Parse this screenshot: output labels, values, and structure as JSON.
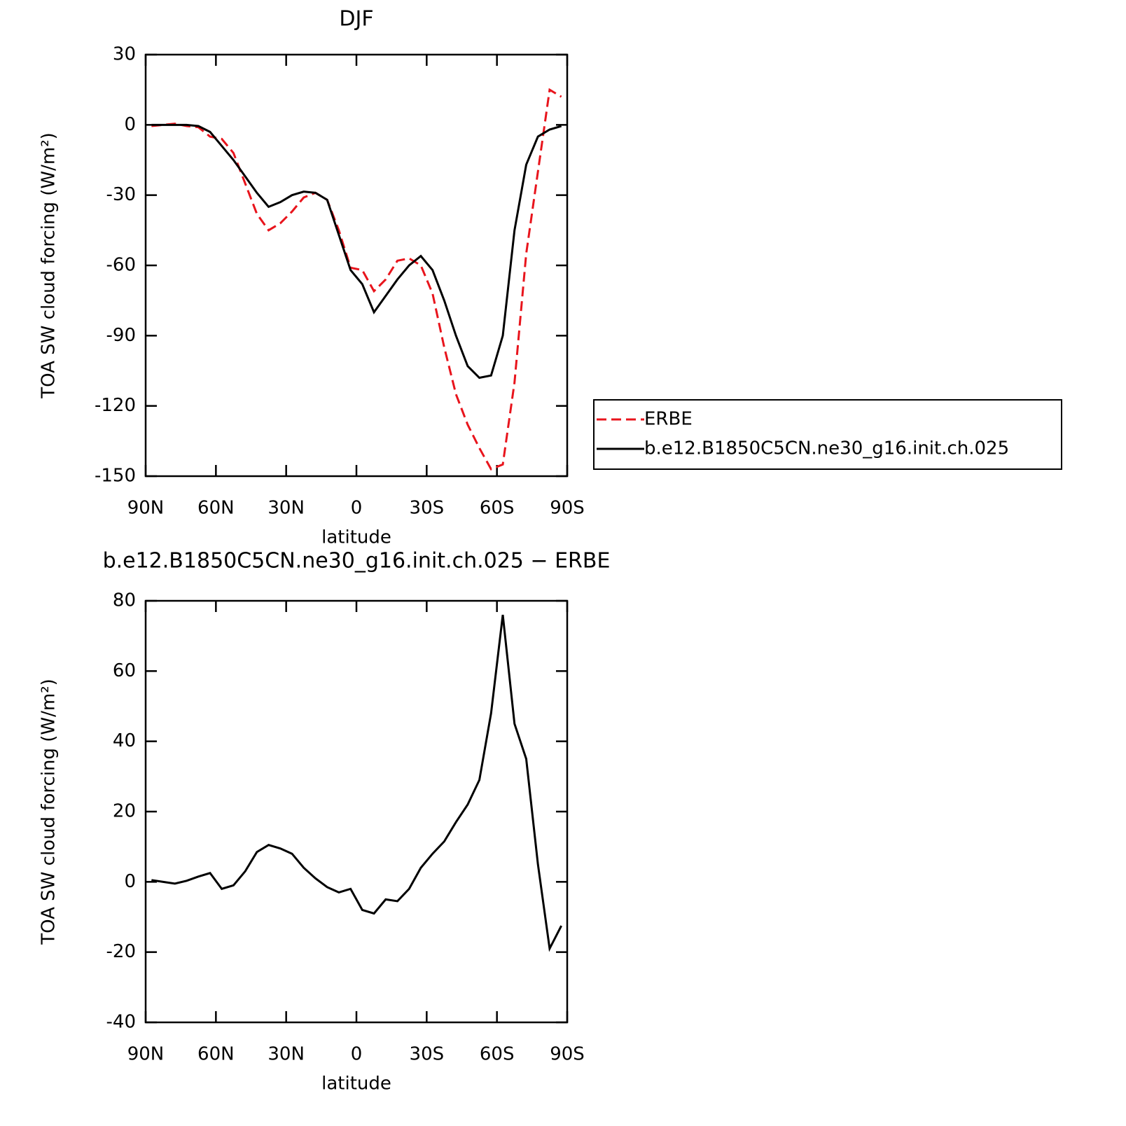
{
  "chart_data": [
    {
      "type": "line",
      "title": "DJF",
      "xlabel": "latitude",
      "ylabel": "TOA SW cloud forcing (W/m²)",
      "x": [
        87.5,
        82.5,
        77.5,
        72.5,
        67.5,
        62.5,
        57.5,
        52.5,
        47.5,
        42.5,
        37.5,
        32.5,
        27.5,
        22.5,
        17.5,
        12.5,
        7.5,
        2.5,
        -2.5,
        -7.5,
        -12.5,
        -17.5,
        -22.5,
        -27.5,
        -32.5,
        -37.5,
        -42.5,
        -47.5,
        -52.5,
        -57.5,
        -62.5,
        -67.5,
        -72.5,
        -77.5,
        -82.5,
        -87.5
      ],
      "series": [
        {
          "name": "ERBE",
          "color": "#e8141c",
          "linestyle": "dashed",
          "values": [
            -0.5,
            0,
            0.5,
            -0.5,
            -1,
            -5,
            -6,
            -12,
            -25,
            -38,
            -45,
            -42,
            -37,
            -31,
            -29,
            -32,
            -45,
            -61,
            -62,
            -71,
            -66,
            -58,
            -57,
            -60,
            -72,
            -95,
            -115,
            -128,
            -138,
            -147,
            -145,
            -110,
            -55,
            -20,
            15,
            12
          ]
        },
        {
          "name": "b.e12.B1850C5CN.ne30_g16.init.ch.025",
          "color": "#000000",
          "linestyle": "solid",
          "values": [
            0,
            0,
            0,
            0,
            -0.5,
            -3,
            -9,
            -15,
            -22,
            -29,
            -35,
            -33,
            -30,
            -28.5,
            -29,
            -32,
            -47,
            -62,
            -68,
            -80,
            -73,
            -66,
            -60,
            -56,
            -62,
            -75,
            -90,
            -103,
            -108,
            -107,
            -90,
            -45,
            -17,
            -5,
            -2,
            -0.5
          ]
        }
      ],
      "xlim": [
        90,
        -90
      ],
      "xticks": [
        {
          "value": 90,
          "label": "90N"
        },
        {
          "value": 60,
          "label": "60N"
        },
        {
          "value": 30,
          "label": "30N"
        },
        0,
        {
          "value": -30,
          "label": "30S"
        },
        {
          "value": -60,
          "label": "60S"
        },
        {
          "value": -90,
          "label": "90S"
        }
      ],
      "ylim": [
        -150,
        30
      ],
      "yticks": [
        -150,
        -120,
        -90,
        -60,
        -30,
        0,
        30
      ],
      "legend": "right"
    },
    {
      "type": "line",
      "title": "b.e12.B1850C5CN.ne30_g16.init.ch.025 − ERBE",
      "xlabel": "latitude",
      "ylabel": "TOA SW cloud forcing (W/m²)",
      "x": [
        87.5,
        82.5,
        77.5,
        72.5,
        67.5,
        62.5,
        57.5,
        52.5,
        47.5,
        42.5,
        37.5,
        32.5,
        27.5,
        22.5,
        17.5,
        12.5,
        7.5,
        2.5,
        -2.5,
        -7.5,
        -12.5,
        -17.5,
        -22.5,
        -27.5,
        -32.5,
        -37.5,
        -42.5,
        -47.5,
        -52.5,
        -57.5,
        -62.5,
        -67.5,
        -72.5,
        -77.5,
        -82.5,
        -87.5
      ],
      "series": [
        {
          "color": "#000000",
          "linestyle": "solid",
          "values": [
            0.5,
            0,
            -0.5,
            0.3,
            1.5,
            2.5,
            -2,
            -1,
            3,
            8.5,
            10.5,
            9.5,
            8,
            4,
            1,
            -1.5,
            -3,
            -2,
            -8,
            -9,
            -5,
            -5.5,
            -2,
            4,
            8,
            11.5,
            17,
            22,
            29,
            48,
            76,
            45,
            35,
            5,
            -19,
            -12.5
          ]
        }
      ],
      "xlim": [
        90,
        -90
      ],
      "xticks": [
        {
          "value": 90,
          "label": "90N"
        },
        {
          "value": 60,
          "label": "60N"
        },
        {
          "value": 30,
          "label": "30N"
        },
        0,
        {
          "value": -30,
          "label": "30S"
        },
        {
          "value": -60,
          "label": "60S"
        },
        {
          "value": -90,
          "label": "90S"
        }
      ],
      "ylim": [
        -40,
        80
      ],
      "yticks": [
        -40,
        -20,
        0,
        20,
        40,
        60,
        80
      ]
    }
  ]
}
